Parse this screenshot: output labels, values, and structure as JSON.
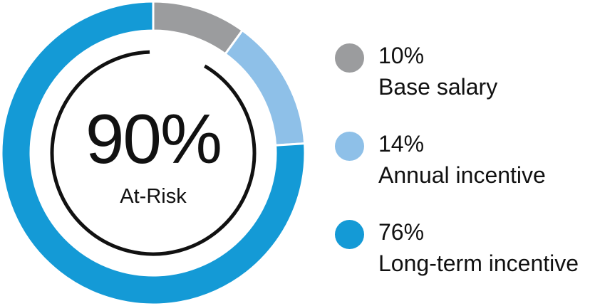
{
  "chart_data": {
    "type": "pie",
    "categories": [
      "Base salary",
      "Annual incentive",
      "Long-term incentive"
    ],
    "values": [
      10,
      14,
      76
    ],
    "value_labels": [
      "10%",
      "14%",
      "76%"
    ],
    "colors": [
      "#9b9c9e",
      "#8ec0e8",
      "#149ad6"
    ],
    "center_value": "90%",
    "center_label": "At-Risk",
    "donut": true,
    "at_risk_share": 90,
    "legend_position": "right"
  }
}
